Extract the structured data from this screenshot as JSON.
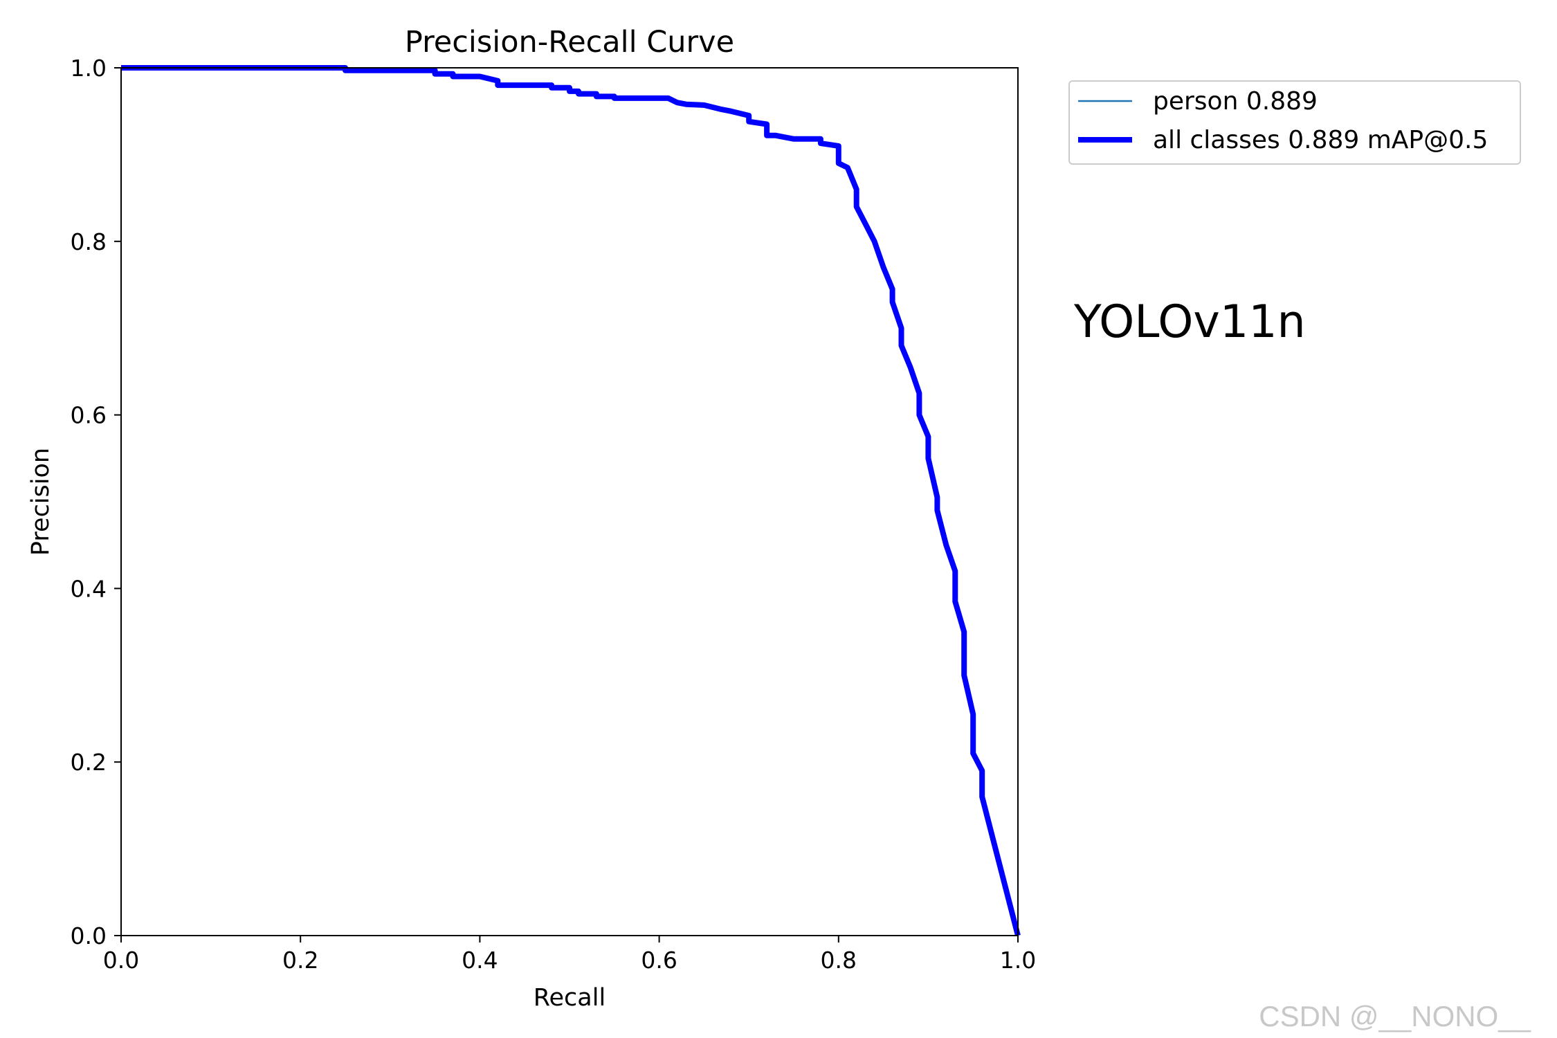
{
  "chart_data": {
    "type": "line",
    "title": "Precision-Recall Curve",
    "xlabel": "Recall",
    "ylabel": "Precision",
    "xlim": [
      0,
      1
    ],
    "ylim": [
      0,
      1
    ],
    "xticks": [
      "0.0",
      "0.2",
      "0.4",
      "0.6",
      "0.8",
      "1.0"
    ],
    "yticks": [
      "0.0",
      "0.2",
      "0.4",
      "0.6",
      "0.8",
      "1.0"
    ],
    "grid": false,
    "legend_position": "outside-top-right",
    "series": [
      {
        "name": "person 0.889",
        "color": "#1f77b4",
        "x": [
          0.0,
          0.05,
          0.1,
          0.15,
          0.2,
          0.25,
          0.25,
          0.3,
          0.35,
          0.35,
          0.37,
          0.37,
          0.4,
          0.42,
          0.42,
          0.44,
          0.45,
          0.48,
          0.48,
          0.5,
          0.5,
          0.51,
          0.51,
          0.53,
          0.53,
          0.55,
          0.55,
          0.57,
          0.61,
          0.62,
          0.63,
          0.65,
          0.67,
          0.68,
          0.7,
          0.7,
          0.72,
          0.72,
          0.73,
          0.74,
          0.75,
          0.78,
          0.78,
          0.8,
          0.8,
          0.81,
          0.82,
          0.82,
          0.83,
          0.84,
          0.85,
          0.86,
          0.86,
          0.87,
          0.87,
          0.88,
          0.89,
          0.89,
          0.9,
          0.9,
          0.91,
          0.91,
          0.92,
          0.93,
          0.93,
          0.94,
          0.94,
          0.95,
          0.95,
          0.96,
          0.96,
          0.97,
          0.98,
          0.99,
          1.0
        ],
        "y": [
          1.0,
          1.0,
          1.0,
          1.0,
          1.0,
          1.0,
          0.997,
          0.997,
          0.997,
          0.993,
          0.993,
          0.99,
          0.99,
          0.985,
          0.98,
          0.98,
          0.98,
          0.98,
          0.977,
          0.977,
          0.973,
          0.973,
          0.97,
          0.97,
          0.967,
          0.967,
          0.965,
          0.965,
          0.965,
          0.96,
          0.958,
          0.957,
          0.952,
          0.95,
          0.945,
          0.938,
          0.935,
          0.922,
          0.922,
          0.92,
          0.918,
          0.918,
          0.913,
          0.91,
          0.89,
          0.885,
          0.86,
          0.84,
          0.82,
          0.8,
          0.77,
          0.745,
          0.73,
          0.7,
          0.68,
          0.655,
          0.625,
          0.6,
          0.575,
          0.55,
          0.505,
          0.49,
          0.45,
          0.42,
          0.385,
          0.35,
          0.3,
          0.255,
          0.21,
          0.19,
          0.16,
          0.12,
          0.08,
          0.04,
          0.0
        ]
      },
      {
        "name": "all classes 0.889 mAP@0.5",
        "color": "#0000ff",
        "x": [
          0.0,
          0.05,
          0.1,
          0.15,
          0.2,
          0.25,
          0.25,
          0.3,
          0.35,
          0.35,
          0.37,
          0.37,
          0.4,
          0.42,
          0.42,
          0.44,
          0.45,
          0.48,
          0.48,
          0.5,
          0.5,
          0.51,
          0.51,
          0.53,
          0.53,
          0.55,
          0.55,
          0.57,
          0.61,
          0.62,
          0.63,
          0.65,
          0.67,
          0.68,
          0.7,
          0.7,
          0.72,
          0.72,
          0.73,
          0.74,
          0.75,
          0.78,
          0.78,
          0.8,
          0.8,
          0.81,
          0.82,
          0.82,
          0.83,
          0.84,
          0.85,
          0.86,
          0.86,
          0.87,
          0.87,
          0.88,
          0.89,
          0.89,
          0.9,
          0.9,
          0.91,
          0.91,
          0.92,
          0.93,
          0.93,
          0.94,
          0.94,
          0.95,
          0.95,
          0.96,
          0.96,
          0.97,
          0.98,
          0.99,
          1.0
        ],
        "y": [
          1.0,
          1.0,
          1.0,
          1.0,
          1.0,
          1.0,
          0.997,
          0.997,
          0.997,
          0.993,
          0.993,
          0.99,
          0.99,
          0.985,
          0.98,
          0.98,
          0.98,
          0.98,
          0.977,
          0.977,
          0.973,
          0.973,
          0.97,
          0.97,
          0.967,
          0.967,
          0.965,
          0.965,
          0.965,
          0.96,
          0.958,
          0.957,
          0.952,
          0.95,
          0.945,
          0.938,
          0.935,
          0.922,
          0.922,
          0.92,
          0.918,
          0.918,
          0.913,
          0.91,
          0.89,
          0.885,
          0.86,
          0.84,
          0.82,
          0.8,
          0.77,
          0.745,
          0.73,
          0.7,
          0.68,
          0.655,
          0.625,
          0.6,
          0.575,
          0.55,
          0.505,
          0.49,
          0.45,
          0.42,
          0.385,
          0.35,
          0.3,
          0.255,
          0.21,
          0.19,
          0.16,
          0.12,
          0.08,
          0.04,
          0.0
        ]
      }
    ],
    "annotations": [
      "YOLOv11n"
    ]
  },
  "watermark": "CSDN @__NONO__"
}
